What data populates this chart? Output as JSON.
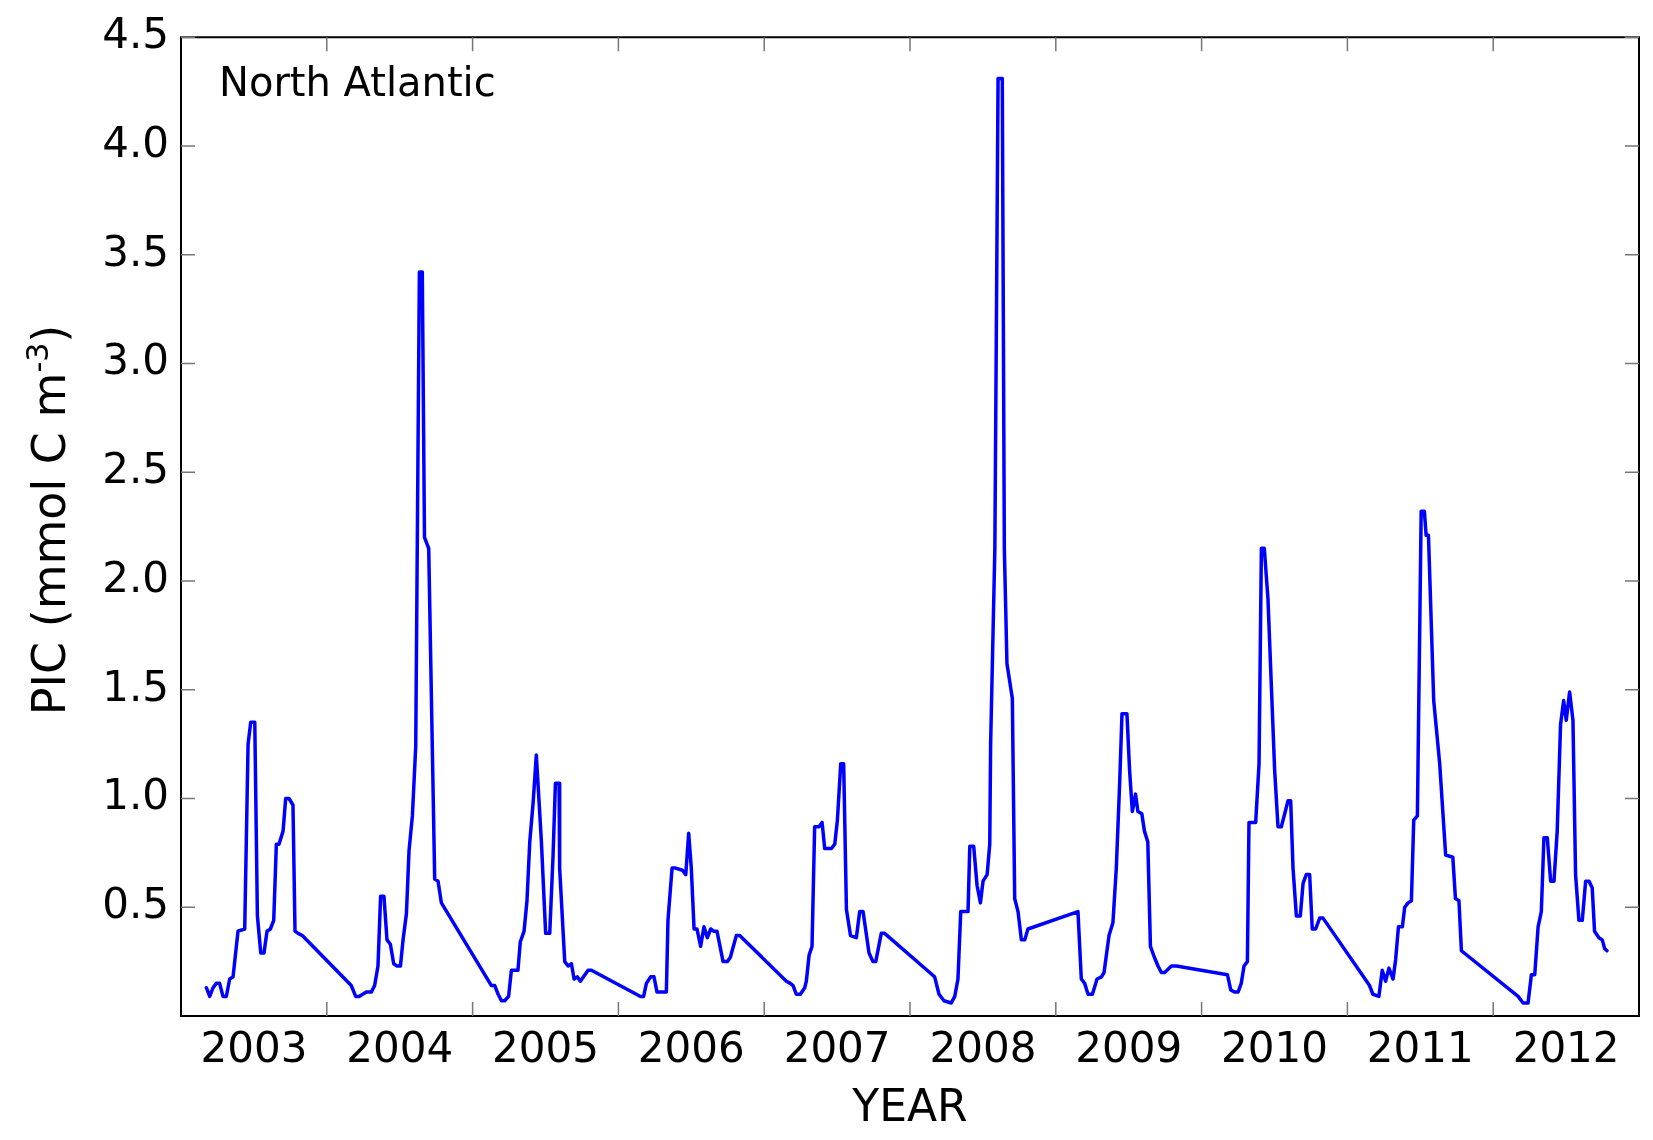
{
  "chart_data": {
    "type": "line",
    "xlabel": "YEAR",
    "ylabel": "PIC (mmol C m$^{-3}$)",
    "annotations": [
      "North Atlantic"
    ],
    "x": [
      2003.174,
      2003.197,
      2003.22,
      2003.242,
      2003.265,
      2003.288,
      2003.311,
      2003.334,
      2003.357,
      2003.391,
      2003.437,
      2003.46,
      2003.478,
      2003.506,
      2003.524,
      2003.547,
      2003.569,
      2003.59,
      2003.613,
      2003.636,
      2003.654,
      2003.672,
      2003.7,
      2003.718,
      2003.741,
      2003.768,
      2003.782,
      2003.803,
      2003.832,
      2004.168,
      2004.198,
      2004.221,
      2004.271,
      2004.306,
      2004.328,
      2004.351,
      2004.369,
      2004.392,
      2004.413,
      2004.436,
      2004.459,
      2004.482,
      2004.505,
      2004.523,
      2004.546,
      2004.564,
      2004.587,
      2004.61,
      2004.635,
      2004.655,
      2004.67,
      2004.699,
      2004.74,
      2004.763,
      2004.786,
      2005.129,
      2005.152,
      2005.175,
      2005.198,
      2005.22,
      2005.247,
      2005.266,
      2005.311,
      2005.327,
      2005.353,
      2005.373,
      2005.392,
      2005.415,
      2005.437,
      2005.472,
      2005.501,
      2005.529,
      2005.552,
      2005.568,
      2005.593,
      2005.597,
      2005.632,
      2005.655,
      2005.678,
      2005.696,
      2005.718,
      2005.739,
      2005.792,
      2005.815,
      2006.123,
      2006.151,
      2006.173,
      2006.192,
      2006.221,
      2006.244,
      2006.265,
      2006.329,
      2006.34,
      2006.368,
      2006.393,
      2006.439,
      2006.462,
      2006.482,
      2006.5,
      2006.519,
      2006.539,
      2006.564,
      2006.587,
      2006.61,
      2006.633,
      2006.653,
      2006.676,
      2006.718,
      2006.747,
      2006.768,
      2006.809,
      2006.832,
      2007.152,
      2007.179,
      2007.198,
      2007.22,
      2007.248,
      2007.278,
      2007.289,
      2007.308,
      2007.328,
      2007.346,
      2007.376,
      2007.397,
      2007.415,
      2007.461,
      2007.484,
      2007.502,
      2007.525,
      2007.545,
      2007.564,
      2007.592,
      2007.632,
      2007.655,
      2007.678,
      2007.719,
      2007.746,
      2007.765,
      2007.803,
      2007.826,
      2008.135,
      2008.169,
      2008.199,
      2008.233,
      2008.283,
      2008.307,
      2008.329,
      2008.348,
      2008.398,
      2008.41,
      2008.437,
      2008.46,
      2008.483,
      2008.501,
      2008.529,
      2008.547,
      2008.553,
      2008.582,
      2008.604,
      2008.633,
      2008.647,
      2008.665,
      2008.702,
      2008.718,
      2008.741,
      2008.764,
      2008.787,
      2008.809,
      2009.152,
      2009.175,
      2009.198,
      2009.221,
      2009.251,
      2009.283,
      2009.313,
      2009.331,
      2009.365,
      2009.392,
      2009.415,
      2009.438,
      2009.454,
      2009.488,
      2009.506,
      2009.525,
      2009.547,
      2009.563,
      2009.59,
      2009.608,
      2009.631,
      2009.649,
      2009.676,
      2009.701,
      2009.724,
      2009.747,
      2009.793,
      2009.827,
      2010.177,
      2010.2,
      2010.226,
      2010.25,
      2010.272,
      2010.291,
      2010.314,
      2010.325,
      2010.371,
      2010.394,
      2010.41,
      2010.43,
      2010.455,
      2010.49,
      2010.501,
      2010.524,
      2010.547,
      2010.593,
      2010.611,
      2010.627,
      2010.65,
      2010.677,
      2010.696,
      2010.718,
      2010.741,
      2010.759,
      2010.782,
      2010.81,
      2010.833,
      2011.152,
      2011.175,
      2011.216,
      2011.239,
      2011.262,
      2011.285,
      2011.313,
      2011.331,
      2011.35,
      2011.377,
      2011.393,
      2011.416,
      2011.439,
      2011.455,
      2011.48,
      2011.506,
      2011.528,
      2011.54,
      2011.556,
      2011.592,
      2011.633,
      2011.674,
      2011.723,
      2011.741,
      2011.765,
      2011.782,
      2012.171,
      2012.205,
      2012.239,
      2012.262,
      2012.285,
      2012.308,
      2012.33,
      2012.348,
      2012.371,
      2012.394,
      2012.417,
      2012.439,
      2012.462,
      2012.483,
      2012.501,
      2012.524,
      2012.547,
      2012.565,
      2012.588,
      2012.611,
      2012.634,
      2012.657,
      2012.679,
      2012.695,
      2012.725,
      2012.748,
      2012.764,
      2012.78
    ],
    "series": [
      {
        "color": "#0000ff",
        "values": [
          0.13,
          0.09,
          0.13,
          0.15,
          0.15,
          0.09,
          0.09,
          0.17,
          0.18,
          0.39,
          0.4,
          1.25,
          1.35,
          1.35,
          0.46,
          0.29,
          0.29,
          0.39,
          0.4,
          0.44,
          0.79,
          0.79,
          0.85,
          1.0,
          1.0,
          0.97,
          0.39,
          0.38,
          0.37,
          0.14,
          0.09,
          0.09,
          0.11,
          0.11,
          0.14,
          0.23,
          0.55,
          0.55,
          0.35,
          0.33,
          0.24,
          0.23,
          0.23,
          0.35,
          0.47,
          0.76,
          0.92,
          1.24,
          3.42,
          3.42,
          2.2,
          2.15,
          0.63,
          0.62,
          0.52,
          0.14,
          0.14,
          0.1,
          0.07,
          0.07,
          0.09,
          0.21,
          0.21,
          0.34,
          0.39,
          0.53,
          0.8,
          0.98,
          1.2,
          0.8,
          0.38,
          0.38,
          0.74,
          1.07,
          1.07,
          0.68,
          0.25,
          0.23,
          0.24,
          0.17,
          0.18,
          0.16,
          0.21,
          0.21,
          0.1,
          0.09,
          0.09,
          0.15,
          0.18,
          0.18,
          0.11,
          0.11,
          0.44,
          0.68,
          0.68,
          0.67,
          0.65,
          0.84,
          0.68,
          0.4,
          0.4,
          0.32,
          0.41,
          0.36,
          0.4,
          0.39,
          0.39,
          0.25,
          0.25,
          0.27,
          0.37,
          0.37,
          0.16,
          0.15,
          0.14,
          0.1,
          0.1,
          0.13,
          0.16,
          0.28,
          0.32,
          0.87,
          0.87,
          0.89,
          0.77,
          0.77,
          0.79,
          0.9,
          1.16,
          1.16,
          0.49,
          0.37,
          0.36,
          0.48,
          0.48,
          0.29,
          0.25,
          0.25,
          0.38,
          0.38,
          0.2,
          0.18,
          0.1,
          0.07,
          0.06,
          0.09,
          0.17,
          0.48,
          0.48,
          0.78,
          0.78,
          0.6,
          0.52,
          0.62,
          0.65,
          0.79,
          1.25,
          2.15,
          4.31,
          4.31,
          2.15,
          1.62,
          1.46,
          0.54,
          0.48,
          0.35,
          0.35,
          0.4,
          0.48,
          0.17,
          0.15,
          0.1,
          0.1,
          0.17,
          0.18,
          0.2,
          0.37,
          0.43,
          0.68,
          1.07,
          1.39,
          1.39,
          1.13,
          0.94,
          1.02,
          0.94,
          0.93,
          0.85,
          0.8,
          0.32,
          0.27,
          0.23,
          0.2,
          0.2,
          0.23,
          0.23,
          0.19,
          0.12,
          0.11,
          0.11,
          0.15,
          0.23,
          0.25,
          0.89,
          0.89,
          1.16,
          2.15,
          2.15,
          1.92,
          1.32,
          1.13,
          0.87,
          0.87,
          0.99,
          0.99,
          0.68,
          0.46,
          0.46,
          0.61,
          0.65,
          0.65,
          0.4,
          0.4,
          0.45,
          0.45,
          0.14,
          0.1,
          0.09,
          0.21,
          0.16,
          0.22,
          0.17,
          0.26,
          0.41,
          0.41,
          0.5,
          0.52,
          0.53,
          0.9,
          0.92,
          2.32,
          2.32,
          2.21,
          2.21,
          1.45,
          1.16,
          0.74,
          0.73,
          0.54,
          0.53,
          0.3,
          0.09,
          0.06,
          0.06,
          0.19,
          0.19,
          0.41,
          0.48,
          0.82,
          0.82,
          0.62,
          0.62,
          0.85,
          1.34,
          1.45,
          1.36,
          1.49,
          1.36,
          0.65,
          0.44,
          0.44,
          0.62,
          0.62,
          0.59,
          0.39,
          0.36,
          0.35,
          0.31,
          0.3
        ]
      }
    ],
    "xlim": [
      2003,
      2013
    ],
    "xticks": [
      {
        "value": 2003.5,
        "label": "2003"
      },
      {
        "value": 2004,
        "label": null
      },
      {
        "value": 2004.5,
        "label": "2004"
      },
      {
        "value": 2005,
        "label": null
      },
      {
        "value": 2005.5,
        "label": "2005"
      },
      {
        "value": 2006,
        "label": null
      },
      {
        "value": 2006.5,
        "label": "2006"
      },
      {
        "value": 2007,
        "label": null
      },
      {
        "value": 2007.5,
        "label": "2007"
      },
      {
        "value": 2008,
        "label": null
      },
      {
        "value": 2008.5,
        "label": "2008"
      },
      {
        "value": 2009,
        "label": null
      },
      {
        "value": 2009.5,
        "label": "2009"
      },
      {
        "value": 2010,
        "label": null
      },
      {
        "value": 2010.5,
        "label": "2010"
      },
      {
        "value": 2011,
        "label": null
      },
      {
        "value": 2011.5,
        "label": "2011"
      },
      {
        "value": 2012,
        "label": null
      },
      {
        "value": 2012.5,
        "label": "2012"
      }
    ],
    "ylim": [
      0,
      4.5
    ],
    "yticks": [
      0.5,
      {
        "value": 1,
        "label": "1.0"
      },
      1.5,
      {
        "value": 2,
        "label": "2.0"
      },
      2.5,
      {
        "value": 3,
        "label": "3.0"
      },
      3.5,
      {
        "value": 4,
        "label": "4.0"
      },
      4.5
    ],
    "grid": false,
    "legend": false,
    "marker": "none",
    "line_style": "solid"
  }
}
